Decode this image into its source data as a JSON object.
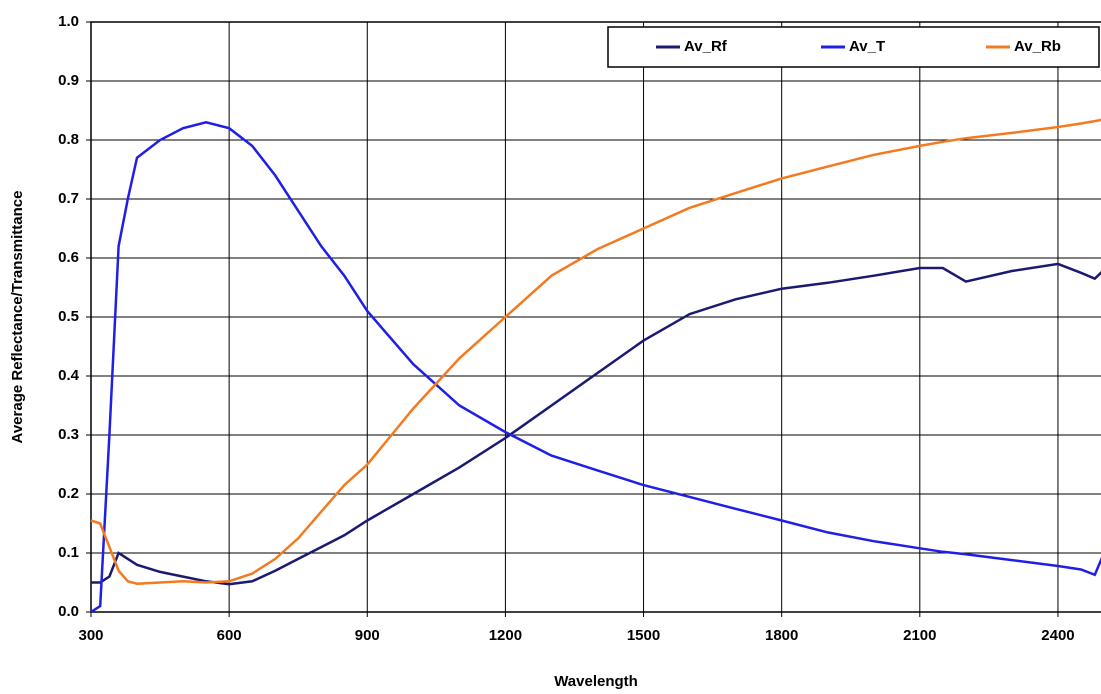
{
  "chart_data": {
    "type": "line",
    "xlabel": "Wavelength",
    "ylabel": "Average Reflectance/Transmittance",
    "x": [
      300,
      320,
      340,
      360,
      380,
      400,
      450,
      500,
      550,
      600,
      650,
      700,
      750,
      800,
      850,
      900,
      1000,
      1100,
      1200,
      1300,
      1400,
      1500,
      1600,
      1700,
      1800,
      1900,
      2000,
      2100,
      2150,
      2200,
      2300,
      2400,
      2450,
      2480,
      2500
    ],
    "series": [
      {
        "name": "Av_Rf",
        "color": "#1a1a72",
        "values": [
          0.05,
          0.05,
          0.06,
          0.1,
          0.09,
          0.08,
          0.068,
          0.06,
          0.052,
          0.047,
          0.052,
          0.07,
          0.09,
          0.11,
          0.13,
          0.155,
          0.2,
          0.245,
          0.295,
          0.35,
          0.405,
          0.46,
          0.505,
          0.53,
          0.548,
          0.558,
          0.57,
          0.583,
          0.583,
          0.56,
          0.578,
          0.59,
          0.575,
          0.565,
          0.58
        ]
      },
      {
        "name": "Av_T",
        "color": "#1f1fe6",
        "values": [
          0.0,
          0.01,
          0.3,
          0.62,
          0.7,
          0.77,
          0.8,
          0.82,
          0.83,
          0.82,
          0.79,
          0.74,
          0.68,
          0.62,
          0.57,
          0.51,
          0.42,
          0.35,
          0.305,
          0.265,
          0.24,
          0.215,
          0.195,
          0.175,
          0.155,
          0.135,
          0.12,
          0.108,
          0.102,
          0.098,
          0.088,
          0.078,
          0.072,
          0.063,
          0.1
        ]
      },
      {
        "name": "Av_Rb",
        "color": "#f47a20",
        "values": [
          0.155,
          0.15,
          0.11,
          0.07,
          0.052,
          0.048,
          0.05,
          0.052,
          0.05,
          0.052,
          0.065,
          0.09,
          0.125,
          0.17,
          0.215,
          0.25,
          0.345,
          0.43,
          0.5,
          0.57,
          0.615,
          0.65,
          0.685,
          0.71,
          0.735,
          0.755,
          0.775,
          0.79,
          0.797,
          0.803,
          0.812,
          0.822,
          0.828,
          0.832,
          0.835
        ]
      }
    ],
    "xlim": [
      300,
      2500
    ],
    "xticks": [
      300,
      600,
      900,
      1200,
      1500,
      1800,
      2100,
      2400
    ],
    "ylim": [
      0,
      1
    ],
    "yticks": [
      {
        "value": 0,
        "label": "0.0"
      },
      0.1,
      0.2,
      0.3,
      0.4,
      0.5,
      0.6,
      0.7,
      0.8,
      0.9,
      {
        "value": 1,
        "label": "1.0"
      }
    ],
    "grid": true,
    "legend": "upper right"
  }
}
